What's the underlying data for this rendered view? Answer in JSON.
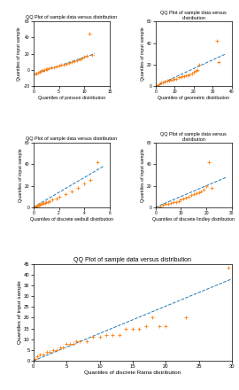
{
  "chart_data": [
    {
      "type": "scatter",
      "title": "QQ Plot of sample data versus distribution",
      "x_label": "Quantiles of poisson distribution",
      "y_label": "Quantiles of input sample",
      "xlim": [
        0,
        15
      ],
      "ylim": [
        -20,
        60
      ],
      "xticks": [
        0,
        5,
        10,
        15
      ],
      "yticks": [
        -20,
        0,
        20,
        40,
        60
      ],
      "series": [
        {
          "type": "line",
          "line_style": "dashed",
          "x": [
            0,
            12
          ],
          "values": [
            -6,
            20
          ]
        },
        {
          "type": "scatter",
          "marker": "plus",
          "x": [
            0.3,
            0.6,
            0.9,
            1.2,
            1.5,
            1.8,
            2.1,
            2.4,
            2.7,
            3.0,
            3.5,
            4.0,
            4.5,
            5.0,
            5.5,
            6.0,
            6.5,
            7.0,
            7.5,
            8.0,
            8.5,
            9.0,
            9.5,
            10.0,
            10.5,
            11.0,
            11.5
          ],
          "values": [
            -5,
            -4,
            -3,
            -2,
            -1,
            0,
            0,
            1,
            1,
            2,
            3,
            3,
            4,
            5,
            6,
            7,
            8,
            9,
            10,
            11,
            12,
            13,
            14,
            16,
            17,
            45,
            18
          ]
        }
      ]
    },
    {
      "type": "scatter",
      "title": "QQ Plot of sample data versus distribution",
      "x_label": "Quantiles of geometric distribution",
      "y_label": "Quantiles of input sample",
      "xlim": [
        0,
        40
      ],
      "ylim": [
        0,
        60
      ],
      "xticks": [
        0,
        10,
        20,
        30,
        40
      ],
      "yticks": [
        0,
        20,
        40,
        60
      ],
      "series": [
        {
          "type": "line",
          "line_style": "dashed",
          "x": [
            0,
            37
          ],
          "values": [
            0,
            30
          ]
        },
        {
          "type": "scatter",
          "marker": "plus",
          "x": [
            1,
            2,
            3,
            4,
            5,
            6,
            7,
            8,
            9,
            10,
            11,
            12,
            13,
            14,
            15,
            16,
            17,
            18,
            19,
            20,
            21,
            22,
            23,
            32,
            33
          ],
          "values": [
            1,
            2,
            3,
            3,
            4,
            5,
            5,
            6,
            6,
            7,
            7,
            8,
            8,
            9,
            9,
            10,
            10,
            11,
            12,
            13,
            14,
            15,
            20,
            42,
            22
          ]
        }
      ]
    },
    {
      "type": "scatter",
      "title": "QQ Plot of sample data versus distribution",
      "x_label": "Quantiles of discrete weibull distribution",
      "y_label": "Quantiles of input sample",
      "xlim": [
        0,
        6
      ],
      "ylim": [
        0,
        60
      ],
      "xticks": [
        0,
        2,
        4,
        6
      ],
      "yticks": [
        0,
        20,
        40,
        60
      ],
      "series": [
        {
          "type": "line",
          "line_style": "dashed",
          "x": [
            0,
            5.5
          ],
          "values": [
            0,
            38
          ]
        },
        {
          "type": "scatter",
          "marker": "plus",
          "x": [
            0.05,
            0.1,
            0.15,
            0.2,
            0.25,
            0.3,
            0.35,
            0.4,
            0.5,
            0.6,
            0.7,
            0.8,
            0.9,
            1.0,
            1.1,
            1.3,
            1.5,
            1.8,
            2.0,
            2.5,
            3.0,
            3.5,
            4.0,
            4.5,
            5.0
          ],
          "values": [
            0,
            0,
            0,
            1,
            1,
            1,
            2,
            2,
            2,
            3,
            3,
            4,
            4,
            5,
            5,
            6,
            7,
            8,
            10,
            12,
            15,
            18,
            22,
            25,
            42
          ]
        }
      ]
    },
    {
      "type": "scatter",
      "title": "QQ Plot of sample data versus distribution",
      "x_label": "Quantiles of discrete lindley distribution",
      "y_label": "Quantiles of input sample",
      "xlim": [
        0,
        30
      ],
      "ylim": [
        0,
        60
      ],
      "xticks": [
        0,
        10,
        20,
        30
      ],
      "yticks": [
        0,
        20,
        40,
        60
      ],
      "series": [
        {
          "type": "line",
          "line_style": "dashed",
          "x": [
            0,
            28
          ],
          "values": [
            0,
            28
          ]
        },
        {
          "type": "scatter",
          "marker": "plus",
          "x": [
            1,
            2,
            3,
            4,
            5,
            6,
            7,
            8,
            9,
            10,
            11,
            12,
            13,
            14,
            15,
            16,
            17,
            18,
            19,
            20,
            21,
            22
          ],
          "values": [
            0,
            1,
            2,
            3,
            3,
            4,
            5,
            5,
            6,
            7,
            8,
            9,
            10,
            11,
            12,
            13,
            14,
            15,
            16,
            20,
            42,
            18
          ]
        }
      ]
    },
    {
      "type": "scatter",
      "title": "QQ Plot of sample data versus distribution",
      "x_label": "Quantiles of discrete Rama distribution",
      "y_label": "Quantiles of input sample",
      "xlim": [
        0,
        30
      ],
      "ylim": [
        0,
        45
      ],
      "xticks": [
        0,
        5,
        10,
        15,
        20,
        25,
        30
      ],
      "yticks": [
        0,
        5,
        10,
        15,
        20,
        25,
        30,
        35,
        40,
        45
      ],
      "series": [
        {
          "type": "line",
          "line_style": "dashed",
          "x": [
            0,
            30
          ],
          "values": [
            0,
            38
          ]
        },
        {
          "type": "scatter",
          "marker": "plus",
          "x": [
            0.3,
            0.6,
            1.0,
            1.5,
            2.0,
            2.5,
            3.0,
            3.5,
            4.0,
            4.5,
            5.0,
            5.5,
            6.0,
            6.5,
            7.0,
            8.0,
            9.0,
            10.0,
            11.0,
            12.0,
            13.0,
            14.0,
            15.0,
            16.0,
            17.0,
            18.0,
            19.0,
            20.0,
            23.0,
            29.5
          ],
          "values": [
            1,
            2,
            3,
            3,
            4,
            4,
            5,
            5,
            6,
            6,
            8,
            8,
            8,
            9,
            9,
            9,
            11,
            11,
            12,
            12,
            12,
            15,
            15,
            15,
            16,
            20,
            16,
            16,
            20,
            43
          ]
        }
      ]
    }
  ]
}
